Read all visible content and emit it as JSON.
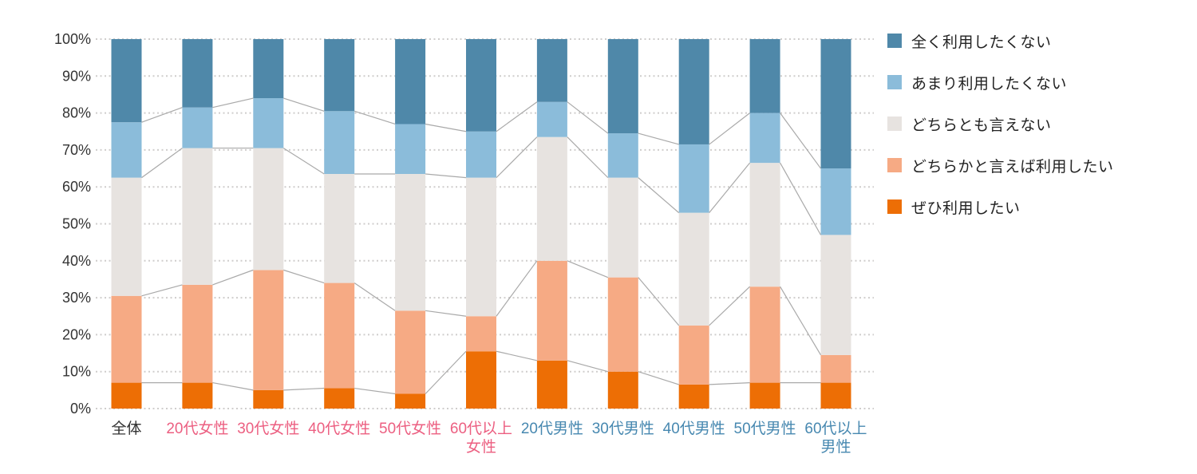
{
  "chart_data": {
    "type": "bar",
    "variant": "100-percent-stacked-column",
    "title": "",
    "xlabel": "",
    "ylabel": "",
    "ylim": [
      0,
      100
    ],
    "grid": "dotted-horizontal",
    "legend_position": "right",
    "connector_lines": true,
    "y_ticks": [
      "0%",
      "10%",
      "20%",
      "30%",
      "40%",
      "50%",
      "60%",
      "70%",
      "80%",
      "90%",
      "100%"
    ],
    "categories": [
      {
        "label": "全体",
        "lines": [
          "全体"
        ],
        "label_color": "#333333"
      },
      {
        "label": "20代女性",
        "lines": [
          "20代女性"
        ],
        "label_color": "#ec5f81"
      },
      {
        "label": "30代女性",
        "lines": [
          "30代女性"
        ],
        "label_color": "#ec5f81"
      },
      {
        "label": "40代女性",
        "lines": [
          "40代女性"
        ],
        "label_color": "#ec5f81"
      },
      {
        "label": "50代女性",
        "lines": [
          "50代女性"
        ],
        "label_color": "#ec5f81"
      },
      {
        "label": "60代以上女性",
        "lines": [
          "60代以上",
          "女性"
        ],
        "label_color": "#ec5f81"
      },
      {
        "label": "20代男性",
        "lines": [
          "20代男性"
        ],
        "label_color": "#4788b0"
      },
      {
        "label": "30代男性",
        "lines": [
          "30代男性"
        ],
        "label_color": "#4788b0"
      },
      {
        "label": "40代男性",
        "lines": [
          "40代男性"
        ],
        "label_color": "#4788b0"
      },
      {
        "label": "50代男性",
        "lines": [
          "50代男性"
        ],
        "label_color": "#4788b0"
      },
      {
        "label": "60代以上男性",
        "lines": [
          "60代以上",
          "男性"
        ],
        "label_color": "#4788b0"
      }
    ],
    "series_bottom_to_top": [
      {
        "name": "ぜひ利用したい",
        "color": "#ed6e05",
        "values": [
          7,
          7,
          5,
          5.5,
          4,
          15.5,
          13,
          10,
          6.5,
          7,
          7
        ]
      },
      {
        "name": "どちらかと言えば利用したい",
        "color": "#f6aa84",
        "values": [
          23.5,
          26.5,
          32.5,
          28.5,
          22.5,
          9.5,
          27,
          25.5,
          16,
          26,
          7.5
        ]
      },
      {
        "name": "どちらとも言えない",
        "color": "#e7e3e0",
        "values": [
          32,
          37,
          33,
          29.5,
          37,
          37.5,
          33.5,
          27,
          30.5,
          33.5,
          32.5
        ]
      },
      {
        "name": "あまり利用したくない",
        "color": "#8bbcda",
        "values": [
          15,
          11,
          13.5,
          17,
          13.5,
          12.5,
          9.5,
          12,
          18.5,
          13.5,
          18
        ]
      },
      {
        "name": "全く利用したくない",
        "color": "#4f88a9",
        "values": [
          22.5,
          18.5,
          16,
          19.5,
          23,
          25,
          17,
          25.5,
          28.5,
          20,
          35
        ]
      }
    ]
  },
  "legend": {
    "items": [
      {
        "label": "全く利用したくない",
        "color": "#4f88a9"
      },
      {
        "label": "あまり利用したくない",
        "color": "#8bbcda"
      },
      {
        "label": "どちらとも言えない",
        "color": "#e7e3e0"
      },
      {
        "label": "どちらかと言えば利用したい",
        "color": "#f6aa84"
      },
      {
        "label": "ぜひ利用したい",
        "color": "#ed6e05"
      }
    ]
  },
  "colors": {
    "gridline": "#cfcdcc",
    "connector": "#a9a9a9",
    "y_tick_text": "#333333"
  }
}
